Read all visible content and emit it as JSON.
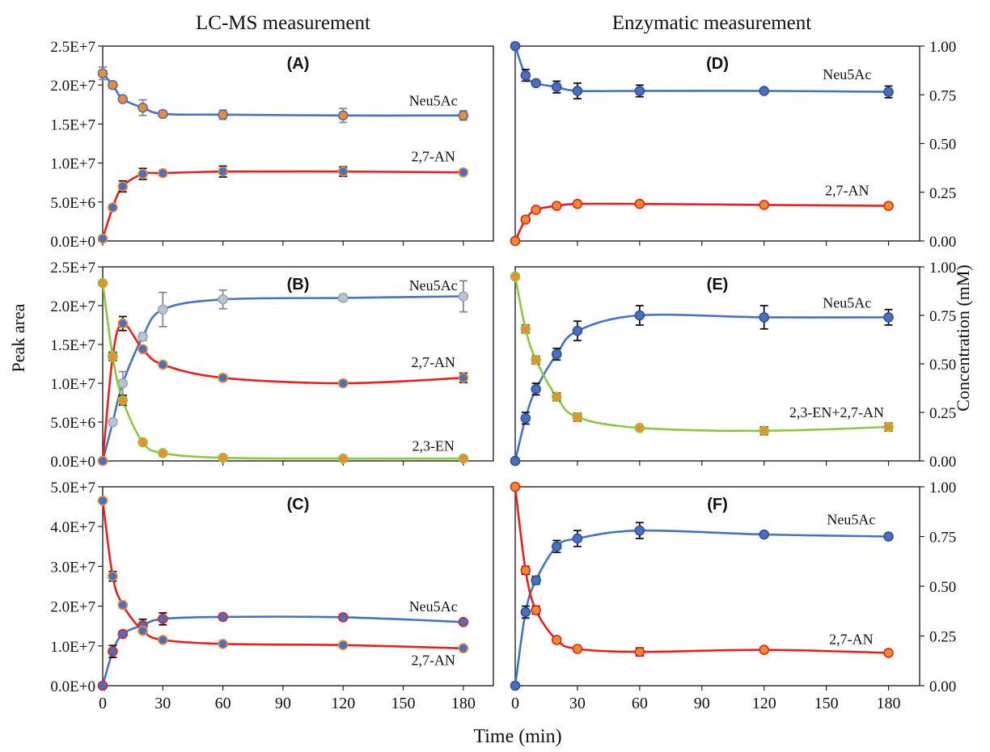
{
  "headers": {
    "left": "LC-MS measurement",
    "right": "Enzymatic measurement"
  },
  "xlabel": "Time (min)",
  "ylabel_left": "Peak area",
  "ylabel_right": "Concentration (mM)",
  "colors": {
    "Neu5Ac": "#4472C4",
    "2,7-AN": "#E8201C",
    "2,3-EN": "#8DC63F",
    "marker_edge_orange": "#F08C2E",
    "marker_edge_gray": "#9AA5B8",
    "errorbar_dark": "#111111",
    "errorbar_gray": "#888888"
  },
  "x_ticks": [
    "0",
    "30",
    "60",
    "90",
    "120",
    "150",
    "180"
  ],
  "chart_data": [
    {
      "panel": "(A)",
      "type": "line",
      "xlabel": "Time (min)",
      "ylabel": "Peak area",
      "x_range": [
        0,
        195
      ],
      "ylim": [
        0,
        25000000
      ],
      "y_ticks": [
        "0.0E+0",
        "5.0E+6",
        "1.0E+7",
        "1.5E+7",
        "2.0E+7",
        "2.5E+7"
      ],
      "series": [
        {
          "name": "Neu5Ac",
          "color": "#4472C4",
          "x": [
            0,
            5,
            10,
            20,
            30,
            60,
            120,
            180
          ],
          "values": [
            21500000,
            20000000,
            18200000,
            17100000,
            16300000,
            16200000,
            16100000,
            16100000
          ],
          "err": [
            800000,
            400000,
            300000,
            1000000,
            400000,
            600000,
            900000,
            600000
          ]
        },
        {
          "name": "2,7-AN",
          "color": "#E8201C",
          "x": [
            0,
            5,
            10,
            20,
            30,
            60,
            120,
            180
          ],
          "values": [
            300000,
            4300000,
            7000000,
            8600000,
            8700000,
            8900000,
            8900000,
            8800000
          ],
          "err": [
            0,
            300000,
            700000,
            700000,
            300000,
            700000,
            600000,
            300000
          ]
        }
      ]
    },
    {
      "panel": "(B)",
      "type": "line",
      "xlabel": "Time (min)",
      "ylabel": "Peak area",
      "x_range": [
        0,
        195
      ],
      "ylim": [
        0,
        25000000
      ],
      "y_ticks": [
        "0.0E+0",
        "5.0E+6",
        "1.0E+7",
        "1.5E+7",
        "2.0E+7",
        "2.5E+7"
      ],
      "series": [
        {
          "name": "Neu5Ac",
          "color": "#4472C4",
          "x": [
            0,
            5,
            10,
            20,
            30,
            60,
            120,
            180
          ],
          "values": [
            0,
            5000000,
            10000000,
            16000000,
            19500000,
            20800000,
            21000000,
            21200000
          ],
          "err": [
            0,
            300000,
            1500000,
            500000,
            2200000,
            1200000,
            400000,
            2000000
          ]
        },
        {
          "name": "2,7-AN",
          "color": "#E8201C",
          "x": [
            0,
            5,
            10,
            20,
            30,
            60,
            120,
            180
          ],
          "values": [
            0,
            13500000,
            17700000,
            14400000,
            12400000,
            10700000,
            10000000,
            10700000
          ],
          "err": [
            0,
            500000,
            900000,
            300000,
            300000,
            400000,
            300000,
            600000
          ]
        },
        {
          "name": "2,3-EN",
          "color": "#8DC63F",
          "x": [
            0,
            5,
            10,
            20,
            30,
            60,
            120,
            180
          ],
          "values": [
            22900000,
            13400000,
            7800000,
            2400000,
            1000000,
            400000,
            300000,
            300000
          ],
          "err": [
            0,
            500000,
            600000,
            200000,
            200000,
            100000,
            100000,
            100000
          ]
        }
      ]
    },
    {
      "panel": "(C)",
      "type": "line",
      "xlabel": "Time (min)",
      "ylabel": "Peak area",
      "x_range": [
        0,
        195
      ],
      "ylim": [
        0,
        50000000
      ],
      "y_ticks": [
        "0.0E+0",
        "1.0E+7",
        "2.0E+7",
        "3.0E+7",
        "4.0E+7",
        "5.0E+7"
      ],
      "series": [
        {
          "name": "Neu5Ac",
          "color": "#4472C4",
          "x": [
            0,
            5,
            10,
            20,
            30,
            60,
            120,
            180
          ],
          "values": [
            0,
            8600000,
            13000000,
            15200000,
            16800000,
            17300000,
            17200000,
            16000000
          ],
          "err": [
            0,
            1500000,
            600000,
            1500000,
            1500000,
            600000,
            500000,
            500000
          ]
        },
        {
          "name": "2,7-AN",
          "color": "#E8201C",
          "x": [
            0,
            5,
            10,
            20,
            30,
            60,
            120,
            180
          ],
          "values": [
            46500000,
            27500000,
            20300000,
            13800000,
            11500000,
            10500000,
            10200000,
            9400000
          ],
          "err": [
            0,
            1200000,
            500000,
            500000,
            500000,
            300000,
            300000,
            300000
          ]
        }
      ]
    },
    {
      "panel": "(D)",
      "type": "line",
      "xlabel": "Time (min)",
      "ylabel": "Concentration (mM)",
      "x_range": [
        0,
        195
      ],
      "ylim": [
        0,
        1
      ],
      "y_ticks": [
        "0.00",
        "0.25",
        "0.50",
        "0.75",
        "1.00"
      ],
      "series": [
        {
          "name": "Neu5Ac",
          "color": "#4472C4",
          "x": [
            0,
            5,
            10,
            20,
            30,
            60,
            120,
            180
          ],
          "values": [
            1.0,
            0.85,
            0.81,
            0.79,
            0.77,
            0.77,
            0.77,
            0.765
          ],
          "err": [
            0,
            0.03,
            0.01,
            0.03,
            0.04,
            0.03,
            0.01,
            0.03
          ]
        },
        {
          "name": "2,7-AN",
          "color": "#E8201C",
          "x": [
            0,
            5,
            10,
            20,
            30,
            60,
            120,
            180
          ],
          "values": [
            0,
            0.11,
            0.16,
            0.18,
            0.19,
            0.19,
            0.185,
            0.18
          ],
          "err": [
            0,
            0.01,
            0.01,
            0.01,
            0.01,
            0.01,
            0.01,
            0.01
          ]
        }
      ]
    },
    {
      "panel": "(E)",
      "type": "line",
      "xlabel": "Time (min)",
      "ylabel": "Concentration (mM)",
      "x_range": [
        0,
        195
      ],
      "ylim": [
        0,
        1
      ],
      "y_ticks": [
        "0.00",
        "0.25",
        "0.50",
        "0.75",
        "1.00"
      ],
      "series": [
        {
          "name": "Neu5Ac",
          "color": "#4472C4",
          "x": [
            0,
            5,
            10,
            20,
            30,
            60,
            120,
            180
          ],
          "values": [
            0,
            0.22,
            0.37,
            0.55,
            0.67,
            0.75,
            0.74,
            0.74
          ],
          "err": [
            0,
            0.03,
            0.03,
            0.03,
            0.05,
            0.05,
            0.06,
            0.04
          ]
        },
        {
          "name": "2,3-EN+2,7-AN",
          "color": "#8DC63F",
          "x": [
            0,
            5,
            10,
            20,
            30,
            60,
            120,
            180
          ],
          "values": [
            0.95,
            0.68,
            0.52,
            0.33,
            0.225,
            0.17,
            0.155,
            0.175
          ],
          "err": [
            0,
            0.02,
            0.02,
            0.02,
            0.02,
            0.01,
            0.02,
            0.02
          ]
        }
      ]
    },
    {
      "panel": "(F)",
      "type": "line",
      "xlabel": "Time (min)",
      "ylabel": "Concentration (mM)",
      "x_range": [
        0,
        195
      ],
      "ylim": [
        0,
        1
      ],
      "y_ticks": [
        "0.00",
        "0.25",
        "0.50",
        "0.75",
        "1.00"
      ],
      "series": [
        {
          "name": "Neu5Ac",
          "color": "#4472C4",
          "x": [
            0,
            5,
            10,
            20,
            30,
            60,
            120,
            180
          ],
          "values": [
            0,
            0.37,
            0.53,
            0.7,
            0.74,
            0.78,
            0.76,
            0.75
          ],
          "err": [
            0,
            0.03,
            0.02,
            0.03,
            0.04,
            0.04,
            0.01,
            0.01
          ]
        },
        {
          "name": "2,7-AN",
          "color": "#E8201C",
          "x": [
            0,
            5,
            10,
            20,
            30,
            60,
            120,
            180
          ],
          "values": [
            1.0,
            0.58,
            0.38,
            0.23,
            0.185,
            0.17,
            0.18,
            0.165
          ],
          "err": [
            0,
            0.02,
            0.02,
            0.01,
            0.01,
            0.02,
            0.01,
            0.01
          ]
        }
      ]
    }
  ],
  "series_labels": {
    "A": [
      "Neu5Ac",
      "2,7-AN"
    ],
    "B": [
      "Neu5Ac",
      "2,7-AN",
      "2,3-EN"
    ],
    "C": [
      "Neu5Ac",
      "2,7-AN"
    ],
    "D": [
      "Neu5Ac",
      "2,7-AN"
    ],
    "E": [
      "Neu5Ac",
      "2,3-EN+2,7-AN"
    ],
    "F": [
      "Neu5Ac",
      "2,7-AN"
    ]
  }
}
